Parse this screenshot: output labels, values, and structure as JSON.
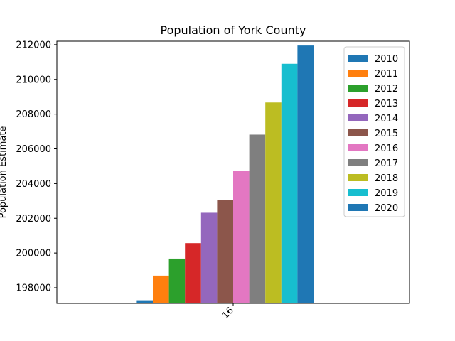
{
  "chart_data": {
    "type": "bar",
    "title": "Population of York County",
    "xlabel": "",
    "ylabel": "Population Estimate",
    "categories": [
      "16"
    ],
    "ylim": [
      197100,
      212200
    ],
    "yticks": [
      198000,
      200000,
      202000,
      204000,
      206000,
      208000,
      210000,
      212000
    ],
    "grid": false,
    "legend_position": "top-right",
    "series": [
      {
        "name": "2010",
        "values": [
          197280
        ],
        "color": "#1f77b4"
      },
      {
        "name": "2011",
        "values": [
          198700
        ],
        "color": "#ff7f0e"
      },
      {
        "name": "2012",
        "values": [
          199680
        ],
        "color": "#2ca02c"
      },
      {
        "name": "2013",
        "values": [
          200570
        ],
        "color": "#d62728"
      },
      {
        "name": "2014",
        "values": [
          202320
        ],
        "color": "#9467bd"
      },
      {
        "name": "2015",
        "values": [
          203050
        ],
        "color": "#8c564b"
      },
      {
        "name": "2016",
        "values": [
          204730
        ],
        "color": "#e377c2"
      },
      {
        "name": "2017",
        "values": [
          206820
        ],
        "color": "#7f7f7f"
      },
      {
        "name": "2018",
        "values": [
          208670
        ],
        "color": "#bcbd22"
      },
      {
        "name": "2019",
        "values": [
          210900
        ],
        "color": "#17becf"
      },
      {
        "name": "2020",
        "values": [
          211950
        ],
        "color": "#1f77b4"
      }
    ]
  }
}
